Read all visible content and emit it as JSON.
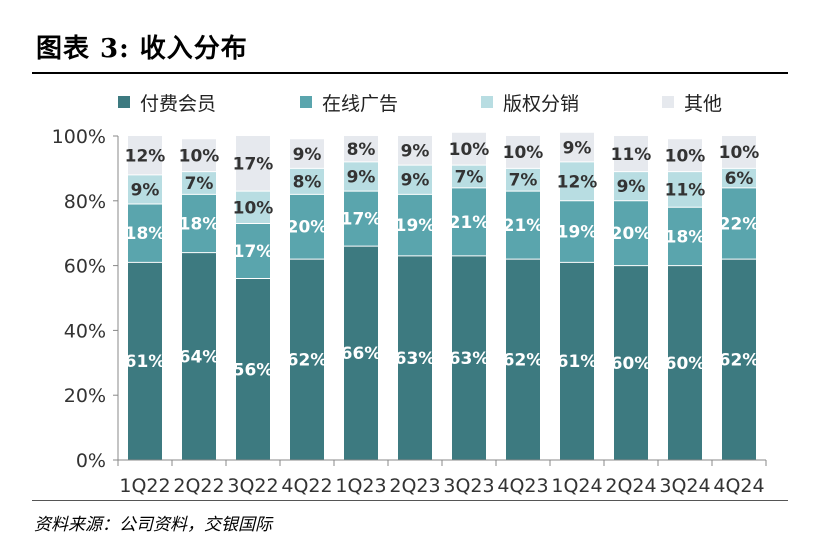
{
  "figure": {
    "title": "图表 3: 收入分布",
    "source": "资料来源：公司资料，交银国际"
  },
  "chart_data": {
    "type": "bar",
    "stacked": true,
    "categories": [
      "1Q22",
      "2Q22",
      "3Q22",
      "4Q22",
      "1Q23",
      "2Q23",
      "3Q23",
      "4Q23",
      "1Q24",
      "2Q24",
      "3Q24",
      "4Q24"
    ],
    "series": [
      {
        "name": "付费会员",
        "color": "#3d7a80",
        "label_color": "#ffffff",
        "values": [
          61,
          64,
          56,
          62,
          66,
          63,
          63,
          62,
          61,
          60,
          60,
          62
        ]
      },
      {
        "name": "在线广告",
        "color": "#5aa5ad",
        "label_color": "#ffffff",
        "values": [
          18,
          18,
          17,
          20,
          17,
          19,
          21,
          21,
          19,
          20,
          18,
          22
        ]
      },
      {
        "name": "版权分销",
        "color": "#b8dde2",
        "label_color": "#333333",
        "values": [
          9,
          7,
          10,
          8,
          9,
          9,
          7,
          7,
          12,
          9,
          11,
          6
        ]
      },
      {
        "name": "其他",
        "color": "#e6e9ee",
        "label_color": "#333333",
        "values": [
          12,
          10,
          17,
          9,
          8,
          9,
          10,
          10,
          9,
          11,
          10,
          10
        ]
      }
    ],
    "yticks": [
      "0%",
      "20%",
      "40%",
      "60%",
      "80%",
      "100%"
    ],
    "ylim": [
      0,
      100
    ],
    "legend": "top",
    "grid": false
  }
}
